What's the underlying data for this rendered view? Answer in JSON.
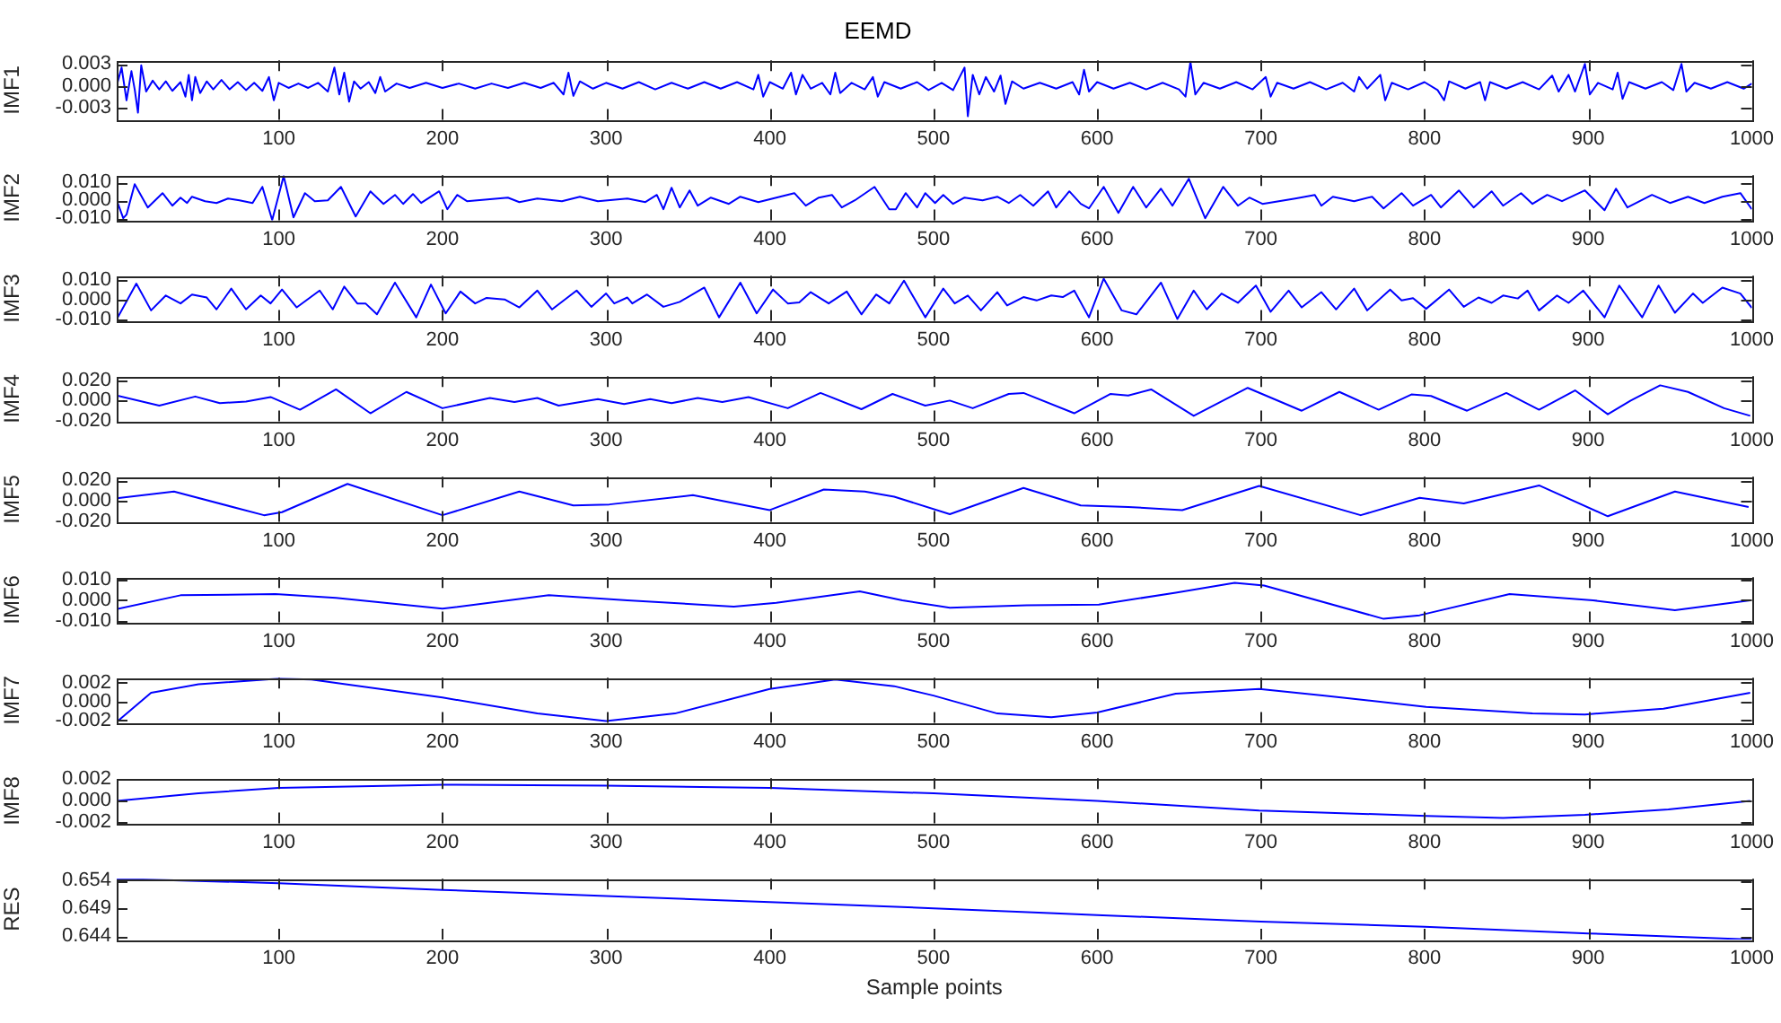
{
  "chart_data": [
    {
      "type": "line",
      "title": "EEMD",
      "ylabel": "IMF1",
      "color": "#0000ff",
      "grid": false,
      "xlim": [
        1,
        1000
      ],
      "xticks": [
        100,
        200,
        300,
        400,
        500,
        600,
        700,
        800,
        900,
        1000
      ],
      "ylim": [
        -0.0047,
        0.0035
      ],
      "yticks": [
        {
          "value": -0.003,
          "label": "-0.003"
        },
        {
          "value": 0,
          "label": "0.000"
        },
        {
          "value": 0.003,
          "label": "0.003"
        }
      ],
      "x": [
        1,
        4,
        7,
        10,
        12,
        14,
        16,
        19,
        23,
        27,
        31,
        35,
        40,
        43,
        45,
        47,
        49,
        52,
        56,
        60,
        65,
        70,
        75,
        80,
        85,
        90,
        94,
        97,
        100,
        106,
        112,
        118,
        124,
        130,
        134,
        137,
        140,
        143,
        146,
        150,
        155,
        159,
        162,
        165,
        172,
        180,
        190,
        200,
        210,
        220,
        230,
        240,
        250,
        260,
        268,
        274,
        277,
        280,
        284,
        292,
        300,
        310,
        320,
        330,
        340,
        350,
        360,
        370,
        380,
        390,
        393,
        396,
        400,
        408,
        413,
        416,
        420,
        425,
        432,
        437,
        440,
        443,
        450,
        458,
        463,
        466,
        470,
        480,
        490,
        497,
        505,
        512,
        516,
        519,
        521,
        524,
        528,
        532,
        537,
        541,
        544,
        548,
        555,
        565,
        575,
        585,
        589,
        592,
        595,
        600,
        610,
        620,
        630,
        640,
        650,
        654,
        657,
        660,
        665,
        675,
        685,
        695,
        703,
        706,
        710,
        720,
        730,
        740,
        750,
        757,
        760,
        765,
        773,
        776,
        780,
        790,
        800,
        808,
        812,
        815,
        825,
        834,
        837,
        840,
        850,
        860,
        870,
        878,
        882,
        888,
        892,
        898,
        901,
        906,
        915,
        918,
        921,
        925,
        935,
        945,
        952,
        957,
        960,
        965,
        975,
        985,
        995,
        1000
      ],
      "values": [
        0,
        0.0025,
        -0.002,
        0.002,
        -0.0005,
        -0.0037,
        0.0028,
        -0.0008,
        0.0007,
        -0.0005,
        0.0006,
        -0.0007,
        0.0005,
        -0.0015,
        0.0015,
        -0.002,
        0.0012,
        -0.001,
        0.0006,
        -0.0005,
        0.0008,
        -0.0005,
        0.0005,
        -0.0006,
        0.0004,
        -0.0007,
        0.0012,
        -0.002,
        0.0004,
        -0.0003,
        0.0003,
        -0.0003,
        0.0004,
        -0.0008,
        0.0025,
        -0.0012,
        0.0018,
        -0.0022,
        0.0006,
        -0.0004,
        0.0005,
        -0.001,
        0.0012,
        -0.0008,
        0.0003,
        -0.0003,
        0.0004,
        -0.0003,
        0.0003,
        -0.0004,
        0.0003,
        -0.0003,
        0.0004,
        -0.0003,
        0.0004,
        -0.0012,
        0.0018,
        -0.0014,
        0.0006,
        -0.0004,
        0.0004,
        -0.0004,
        0.0005,
        -0.0005,
        0.0004,
        -0.0004,
        0.0005,
        -0.0004,
        0.0005,
        -0.0005,
        0.0015,
        -0.0015,
        0.0005,
        -0.0004,
        0.0018,
        -0.0012,
        0.0015,
        -0.0004,
        0.0004,
        -0.0012,
        0.0018,
        -0.001,
        0.0004,
        -0.0005,
        0.0012,
        -0.0015,
        0.0005,
        -0.0004,
        0.0005,
        -0.0006,
        0.0004,
        -0.0006,
        0.0012,
        0.0025,
        -0.0042,
        0.0015,
        -0.0012,
        0.0012,
        -0.0008,
        0.0014,
        -0.0025,
        0.0006,
        -0.0004,
        0.0004,
        -0.0004,
        0.0005,
        -0.0012,
        0.0022,
        -0.0008,
        0.0005,
        -0.0004,
        0.0004,
        -0.0005,
        0.0004,
        -0.0005,
        -0.0015,
        0.0033,
        -0.0012,
        0.0004,
        -0.0004,
        0.0005,
        -0.0005,
        0.0012,
        -0.0015,
        0.0004,
        -0.0004,
        0.0005,
        -0.0005,
        0.0004,
        -0.0008,
        0.0012,
        -0.0004,
        0.0015,
        -0.002,
        0.0004,
        -0.0005,
        0.0005,
        -0.0006,
        -0.002,
        0.0006,
        -0.0004,
        0.0005,
        -0.002,
        0.0005,
        -0.0004,
        0.0005,
        -0.0005,
        0.0014,
        -0.0008,
        0.0015,
        -0.0008,
        0.003,
        -0.0012,
        0.0004,
        -0.0005,
        0.0018,
        -0.0018,
        0.0005,
        -0.0004,
        0.0005,
        -0.0006,
        0.003,
        -0.0008,
        0.0004,
        -0.0004,
        0.0005,
        -0.0004,
        0.0003
      ]
    },
    {
      "type": "line",
      "ylabel": "IMF2",
      "color": "#0000ff",
      "grid": false,
      "xlim": [
        1,
        1000
      ],
      "xticks": [
        100,
        200,
        300,
        400,
        500,
        600,
        700,
        800,
        900,
        1000
      ],
      "ylim": [
        -0.0112,
        0.014
      ],
      "yticks": [
        {
          "value": -0.01,
          "label": "-0.010"
        },
        {
          "value": 0,
          "label": "0.000"
        },
        {
          "value": 0.01,
          "label": "0.010"
        }
      ],
      "x": [
        1,
        5,
        7,
        12,
        20,
        29,
        35,
        40,
        44,
        47,
        55,
        62,
        69,
        76,
        84,
        90,
        96,
        103,
        109,
        116,
        122,
        130,
        138,
        147,
        156,
        164,
        171,
        176,
        182,
        187,
        198,
        203,
        209,
        215,
        240,
        247,
        258,
        273,
        284,
        295,
        313,
        324,
        331,
        335,
        340,
        345,
        351,
        356,
        364,
        375,
        382,
        393,
        404,
        415,
        422,
        430,
        438,
        444,
        452,
        464,
        473,
        477,
        483,
        490,
        495,
        501,
        506,
        512,
        519,
        530,
        539,
        546,
        553,
        561,
        570,
        575,
        583,
        590,
        595,
        604,
        613,
        622,
        630,
        639,
        646,
        656,
        666,
        677,
        686,
        693,
        701,
        721,
        733,
        737,
        744,
        757,
        768,
        775,
        786,
        793,
        804,
        810,
        821,
        830,
        841,
        848,
        859,
        866,
        875,
        884,
        898,
        910,
        917,
        924,
        939,
        950,
        961,
        971,
        982,
        993,
        1000
      ],
      "values": [
        0,
        -0.01,
        -0.008,
        0.009,
        -0.004,
        0.004,
        -0.003,
        0.0015,
        -0.0015,
        0.002,
        -0.0005,
        -0.0015,
        0.001,
        0,
        -0.0015,
        0.0075,
        -0.011,
        0.0135,
        -0.0095,
        0.004,
        -0.0005,
        0,
        0.0075,
        -0.009,
        0.005,
        -0.002,
        0.003,
        -0.002,
        0.0035,
        -0.0015,
        0.005,
        -0.005,
        0.003,
        -0.0005,
        0.0015,
        -0.001,
        0.001,
        -0.0005,
        0.002,
        -0.0005,
        0.001,
        -0.001,
        0.003,
        -0.005,
        0.007,
        -0.004,
        0.0055,
        -0.003,
        0.0015,
        -0.002,
        0.002,
        -0.001,
        0.0015,
        0.004,
        -0.003,
        0.0015,
        0.003,
        -0.004,
        0,
        0.0075,
        -0.005,
        -0.005,
        0.004,
        -0.004,
        0.004,
        -0.0015,
        0.003,
        -0.002,
        0.0015,
        0,
        0.002,
        -0.0015,
        0.003,
        -0.003,
        0.005,
        -0.004,
        0.005,
        -0.002,
        -0.0045,
        0.0075,
        -0.007,
        0.0075,
        -0.004,
        0.0065,
        -0.003,
        0.012,
        -0.01,
        0.0075,
        -0.003,
        0.0015,
        -0.002,
        0.001,
        0.003,
        -0.003,
        0.002,
        -0.0005,
        0.002,
        -0.0045,
        0.004,
        -0.003,
        0.003,
        -0.004,
        0.0055,
        -0.004,
        0.005,
        -0.003,
        0.004,
        -0.002,
        0.003,
        -0.0005,
        0.0055,
        -0.0055,
        0.0065,
        -0.004,
        0.003,
        -0.0015,
        0.002,
        -0.0015,
        0.002,
        0.004,
        -0.005
      ]
    },
    {
      "type": "line",
      "ylabel": "IMF3",
      "color": "#0000ff",
      "grid": false,
      "xlim": [
        1,
        1000
      ],
      "xticks": [
        100,
        200,
        300,
        400,
        500,
        600,
        700,
        800,
        900,
        1000
      ],
      "ylim": [
        -0.0108,
        0.012
      ],
      "yticks": [
        {
          "value": -0.01,
          "label": "-0.010"
        },
        {
          "value": 0,
          "label": "0.000"
        },
        {
          "value": 0.01,
          "label": "0.010"
        }
      ],
      "x": [
        1,
        13,
        22,
        31,
        40,
        47,
        56,
        62,
        71,
        80,
        89,
        95,
        102,
        111,
        125,
        133,
        140,
        148,
        153,
        160,
        171,
        184,
        193,
        202,
        211,
        220,
        227,
        238,
        247,
        258,
        267,
        282,
        291,
        300,
        305,
        313,
        316,
        325,
        335,
        345,
        360,
        369,
        382,
        392,
        402,
        411,
        418,
        425,
        436,
        447,
        456,
        465,
        473,
        482,
        495,
        506,
        513,
        521,
        529,
        539,
        545,
        555,
        563,
        572,
        579,
        586,
        595,
        604,
        615,
        624,
        639,
        649,
        659,
        667,
        676,
        686,
        697,
        706,
        717,
        725,
        737,
        746,
        757,
        765,
        779,
        786,
        793,
        801,
        815,
        824,
        833,
        841,
        848,
        857,
        863,
        870,
        881,
        888,
        897,
        910,
        919,
        933,
        943,
        953,
        964,
        970,
        982,
        993,
        1000
      ],
      "values": [
        -0.01,
        0.008,
        -0.0055,
        0.002,
        -0.002,
        0.0025,
        0.001,
        -0.005,
        0.0055,
        -0.005,
        0.002,
        -0.002,
        0.005,
        -0.004,
        0.0045,
        -0.005,
        0.0065,
        -0.002,
        -0.002,
        -0.0075,
        0.0085,
        -0.009,
        0.0075,
        -0.007,
        0.004,
        -0.002,
        0.0008,
        0,
        -0.004,
        0.0045,
        -0.005,
        0.0045,
        -0.0037,
        0.003,
        -0.002,
        0.001,
        -0.002,
        0.0025,
        -0.0037,
        -0.0012,
        0.006,
        -0.009,
        0.0085,
        -0.007,
        0.005,
        -0.002,
        -0.0015,
        0.0037,
        -0.002,
        0.004,
        -0.0075,
        0.0025,
        -0.002,
        0.0095,
        -0.009,
        0.0055,
        -0.002,
        0.002,
        -0.0055,
        0.0037,
        -0.003,
        0.0012,
        -0.0005,
        0.002,
        0.0012,
        0.0045,
        -0.009,
        0.0105,
        -0.0055,
        -0.0075,
        0.0085,
        -0.0098,
        0.0045,
        -0.005,
        0.003,
        -0.0017,
        0.007,
        -0.0062,
        0.0045,
        -0.004,
        0.0037,
        -0.005,
        0.0055,
        -0.0055,
        0.005,
        -0.0005,
        0.0007,
        -0.0047,
        0.005,
        -0.0037,
        0.001,
        -0.0017,
        0.002,
        0.0005,
        0.0045,
        -0.0055,
        0.002,
        -0.0017,
        0.0045,
        -0.009,
        0.007,
        -0.009,
        0.007,
        -0.0067,
        0.003,
        -0.0017,
        0.006,
        0.003,
        -0.0042
      ]
    },
    {
      "type": "line",
      "ylabel": "IMF4",
      "color": "#0000ff",
      "grid": false,
      "xlim": [
        1,
        1000
      ],
      "xticks": [
        100,
        200,
        300,
        400,
        500,
        600,
        700,
        800,
        900,
        1000
      ],
      "ylim": [
        -0.0205,
        0.024
      ],
      "yticks": [
        {
          "value": -0.02,
          "label": "-0.020"
        },
        {
          "value": 0,
          "label": "0.000"
        },
        {
          "value": 0.02,
          "label": "0.020"
        }
      ],
      "x": [
        1,
        27,
        49,
        64,
        80,
        95,
        113,
        135,
        156,
        178,
        200,
        229,
        244,
        258,
        271,
        295,
        311,
        327,
        340,
        356,
        371,
        387,
        411,
        431,
        456,
        475,
        495,
        510,
        524,
        546,
        555,
        586,
        608,
        619,
        633,
        659,
        692,
        725,
        748,
        772,
        792,
        804,
        826,
        850,
        870,
        892,
        912,
        926,
        944,
        961,
        983,
        999
      ],
      "values": [
        0.005,
        -0.005,
        0.004,
        -0.0025,
        -0.001,
        0.0035,
        -0.009,
        0.011,
        -0.0125,
        0.0085,
        -0.0075,
        0.0025,
        -0.0015,
        0.0025,
        -0.005,
        0.0015,
        -0.0035,
        0.0015,
        -0.0025,
        0.0025,
        -0.0015,
        0.0035,
        -0.0075,
        0.0075,
        -0.0085,
        0.0065,
        -0.005,
        0,
        -0.0075,
        0.0065,
        0.0075,
        -0.0125,
        0.0065,
        0.005,
        0.011,
        -0.015,
        0.0125,
        -0.01,
        0.0085,
        -0.009,
        0.006,
        0.0045,
        -0.01,
        0.0075,
        -0.009,
        0.01,
        -0.0135,
        0,
        0.015,
        0.0085,
        -0.0075,
        -0.015
      ]
    },
    {
      "type": "line",
      "ylabel": "IMF5",
      "color": "#0000ff",
      "grid": false,
      "xlim": [
        1,
        1000
      ],
      "xticks": [
        100,
        200,
        300,
        400,
        500,
        600,
        700,
        800,
        900,
        1000
      ],
      "ylim": [
        -0.0205,
        0.0235
      ],
      "yticks": [
        {
          "value": -0.02,
          "label": "-0.020"
        },
        {
          "value": 0,
          "label": "0.000"
        },
        {
          "value": 0.02,
          "label": "0.020"
        }
      ],
      "x": [
        1,
        36,
        91,
        102,
        142,
        200,
        247,
        280,
        302,
        353,
        400,
        433,
        458,
        476,
        510,
        555,
        590,
        619,
        652,
        699,
        761,
        797,
        824,
        870,
        912,
        953,
        998
      ],
      "values": [
        0.0025,
        0.009,
        -0.014,
        -0.011,
        0.0165,
        -0.014,
        0.009,
        -0.0045,
        -0.0035,
        0.0055,
        -0.009,
        0.011,
        0.009,
        0.004,
        -0.013,
        0.0125,
        -0.0045,
        -0.006,
        -0.009,
        0.0145,
        -0.014,
        0.003,
        -0.0025,
        0.015,
        -0.015,
        0.009,
        -0.006
      ]
    },
    {
      "type": "line",
      "ylabel": "IMF6",
      "color": "#0000ff",
      "grid": false,
      "xlim": [
        1,
        1000
      ],
      "xticks": [
        100,
        200,
        300,
        400,
        500,
        600,
        700,
        800,
        900,
        1000
      ],
      "ylim": [
        -0.0105,
        0.011
      ],
      "yticks": [
        {
          "value": -0.01,
          "label": "-0.010"
        },
        {
          "value": 0,
          "label": "0.000"
        },
        {
          "value": 0.01,
          "label": "0.010"
        }
      ],
      "x": [
        1,
        40,
        98,
        135,
        200,
        265,
        313,
        378,
        404,
        455,
        481,
        510,
        557,
        601,
        648,
        684,
        702,
        775,
        797,
        852,
        903,
        953,
        999
      ],
      "values": [
        -0.0042,
        0.0024,
        0.003,
        0.0012,
        -0.004,
        0.0024,
        0,
        -0.003,
        -0.0012,
        0.0043,
        0,
        -0.0035,
        -0.0024,
        -0.002,
        0.0036,
        0.0083,
        0.007,
        -0.0088,
        -0.0071,
        0.003,
        0,
        -0.0047,
        0
      ]
    },
    {
      "type": "line",
      "ylabel": "IMF7",
      "color": "#0000ff",
      "grid": false,
      "xlim": [
        1,
        1000
      ],
      "xticks": [
        100,
        200,
        300,
        400,
        500,
        600,
        700,
        800,
        900,
        1000
      ],
      "ylim": [
        -0.0023,
        0.0025
      ],
      "yticks": [
        {
          "value": -0.002,
          "label": "-0.002"
        },
        {
          "value": 0,
          "label": "0.000"
        },
        {
          "value": 0.002,
          "label": "0.002"
        }
      ],
      "x": [
        1,
        22,
        51,
        100,
        120,
        200,
        258,
        300,
        342,
        400,
        440,
        476,
        500,
        539,
        572,
        600,
        648,
        699,
        739,
        801,
        866,
        898,
        946,
        999
      ],
      "values": [
        -0.0022,
        0.0009,
        0.0018,
        0.0024,
        0.0023,
        0.0004,
        -0.0013,
        -0.0021,
        -0.0013,
        0.0013,
        0.0023,
        0.0016,
        0.0006,
        -0.0013,
        -0.0017,
        -0.0012,
        0.0008,
        0.0013,
        0.0006,
        -0.0006,
        -0.0013,
        -0.0014,
        -0.0008,
        0.0009
      ]
    },
    {
      "type": "line",
      "ylabel": "IMF8",
      "color": "#0000ff",
      "grid": false,
      "xlim": [
        1,
        1000
      ],
      "xticks": [
        100,
        200,
        300,
        400,
        500,
        600,
        700,
        800,
        900,
        1000
      ],
      "ylim": [
        -0.0021,
        0.0021
      ],
      "yticks": [
        {
          "value": -0.002,
          "label": "-0.002"
        },
        {
          "value": 0,
          "label": "0.000"
        },
        {
          "value": 0.002,
          "label": "0.002"
        }
      ],
      "x": [
        1,
        51,
        100,
        200,
        300,
        400,
        476,
        500,
        600,
        699,
        801,
        848,
        898,
        949,
        999
      ],
      "values": [
        0,
        0.0007,
        0.0012,
        0.0015,
        0.0014,
        0.0012,
        0.0008,
        0.0007,
        0,
        -0.0009,
        -0.0014,
        -0.0016,
        -0.0013,
        -0.0008,
        0
      ]
    },
    {
      "type": "line",
      "ylabel": "RES",
      "xlabel": "Sample points",
      "color": "#0000ff",
      "grid": false,
      "xlim": [
        1,
        1000
      ],
      "xticks": [
        100,
        200,
        300,
        400,
        500,
        600,
        700,
        800,
        900,
        1000
      ],
      "ylim": [
        0.6434,
        0.6543
      ],
      "yticks": [
        0.644,
        0.649,
        0.654
      ],
      "x": [
        1,
        100,
        200,
        300,
        400,
        500,
        600,
        700,
        800,
        900,
        1000
      ],
      "values": [
        0.6543,
        0.6535,
        0.6523,
        0.6512,
        0.6501,
        0.649,
        0.6478,
        0.6466,
        0.6457,
        0.6445,
        0.6434
      ]
    }
  ]
}
